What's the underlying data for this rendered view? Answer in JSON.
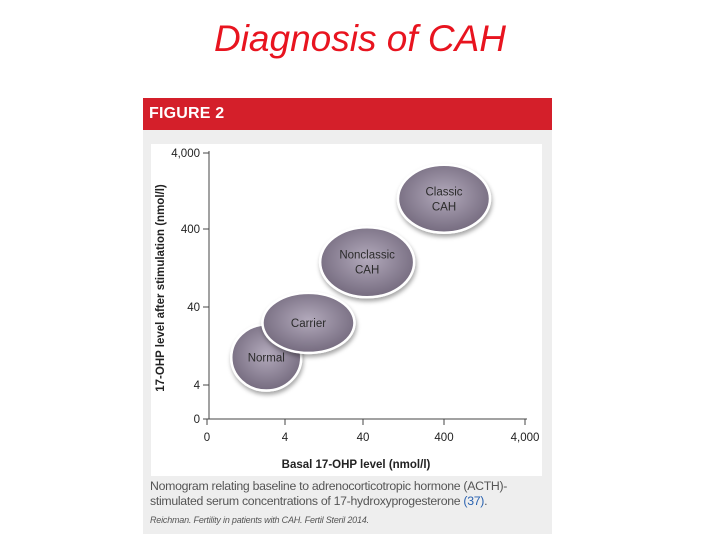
{
  "slide": {
    "title": "Diagnosis of CAH"
  },
  "figure": {
    "label": "FIGURE 2",
    "caption_text": "Nomogram relating baseline to adrenocorticotropic hormone (ACTH)-stimulated serum concentrations of 17-hydroxyprogesterone ",
    "caption_ref": "(37)",
    "caption_end": ".",
    "citation": "Reichman. Fertility in patients with CAH. Fertil Steril 2014."
  },
  "colors": {
    "title": "#e8141f",
    "header": "#d41f2a",
    "ellipse_fill": "#8f8599",
    "ellipse_stroke": "#ffffff",
    "ref_link": "#2a62b0"
  },
  "chart_data": {
    "type": "scatter",
    "xlabel": "Basal 17-OHP level (nmol/l)",
    "ylabel": "17-OHP level after stimulation (nmol/l)",
    "x_ticks": [
      "0",
      "4",
      "40",
      "400",
      "4,000"
    ],
    "y_ticks": [
      "0",
      "4",
      "40",
      "400",
      "4,000"
    ],
    "scale": "log",
    "xlim": [
      0,
      4000
    ],
    "ylim": [
      0,
      4000
    ],
    "grid": false,
    "regions": [
      {
        "label_lines": [
          "Normal"
        ],
        "x": 2.3,
        "y": 9
      },
      {
        "label_lines": [
          "Carrier"
        ],
        "x": 8,
        "y": 25
      },
      {
        "label_lines": [
          "Nonclassic",
          "CAH"
        ],
        "x": 45,
        "y": 150
      },
      {
        "label_lines": [
          "Classic",
          "CAH"
        ],
        "x": 400,
        "y": 1000
      }
    ]
  }
}
